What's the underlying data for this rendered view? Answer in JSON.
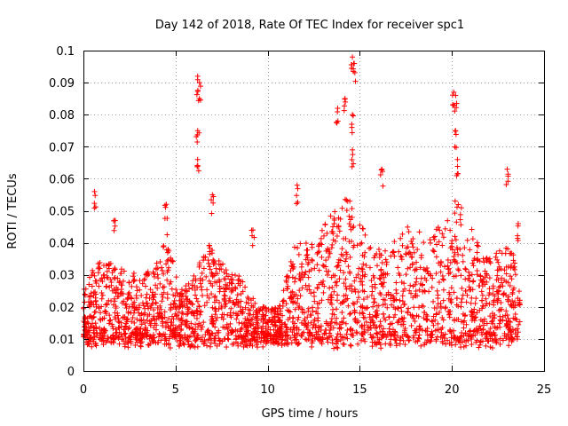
{
  "chart_data": {
    "type": "scatter",
    "title": "Day 142 of 2018, Rate Of TEC Index for receiver spc1",
    "xlabel": "GPS time / hours",
    "ylabel": "ROTI / TECUs",
    "xlim": [
      0,
      25
    ],
    "ylim": [
      0,
      0.1
    ],
    "x_ticks": [
      0,
      5,
      10,
      15,
      20,
      25
    ],
    "y_ticks": [
      0,
      0.01,
      0.02,
      0.03,
      0.04,
      0.05,
      0.06,
      0.07,
      0.08,
      0.09,
      0.1
    ],
    "x_tick_labels": [
      "0",
      "5",
      "10",
      "15",
      "20",
      "25"
    ],
    "y_tick_labels": [
      "0",
      "0.01",
      "0.02",
      "0.03",
      "0.04",
      "0.05",
      "0.06",
      "0.07",
      "0.08",
      "0.09",
      "0.1"
    ],
    "grid": true,
    "legend": "none",
    "marker": "+",
    "color": "#ff0000",
    "series": [
      {
        "name": "ROTI",
        "description": "dense scatter from 0 to ~23.6 h; background mostly 0.008-0.035 TECU, with peaks",
        "peaks": [
          {
            "x": 0.6,
            "y": 0.056
          },
          {
            "x": 1.7,
            "y": 0.047
          },
          {
            "x": 4.5,
            "y": 0.052
          },
          {
            "x": 6.2,
            "y": 0.092
          },
          {
            "x": 6.3,
            "y": 0.09
          },
          {
            "x": 6.2,
            "y": 0.075
          },
          {
            "x": 6.2,
            "y": 0.066
          },
          {
            "x": 7.0,
            "y": 0.055
          },
          {
            "x": 9.2,
            "y": 0.044
          },
          {
            "x": 11.6,
            "y": 0.058
          },
          {
            "x": 13.8,
            "y": 0.082
          },
          {
            "x": 14.2,
            "y": 0.085
          },
          {
            "x": 14.6,
            "y": 0.098
          },
          {
            "x": 14.7,
            "y": 0.096
          },
          {
            "x": 14.6,
            "y": 0.08
          },
          {
            "x": 14.6,
            "y": 0.069
          },
          {
            "x": 16.2,
            "y": 0.063
          },
          {
            "x": 20.1,
            "y": 0.087
          },
          {
            "x": 20.2,
            "y": 0.086
          },
          {
            "x": 20.2,
            "y": 0.075
          },
          {
            "x": 20.3,
            "y": 0.066
          },
          {
            "x": 23.0,
            "y": 0.063
          },
          {
            "x": 23.6,
            "y": 0.046
          }
        ]
      }
    ]
  }
}
